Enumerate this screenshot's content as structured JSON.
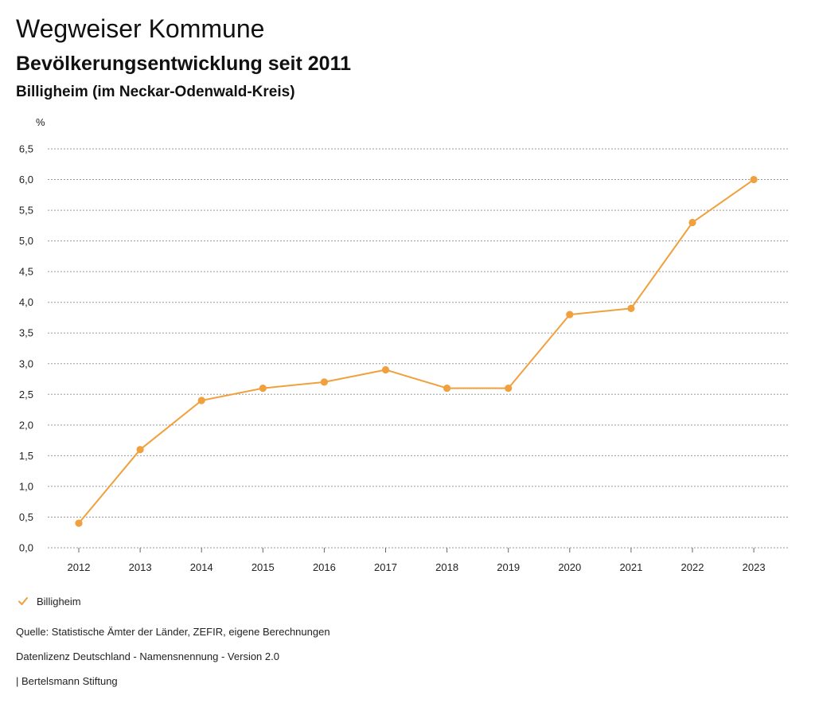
{
  "header": {
    "title": "Wegweiser Kommune",
    "subtitle": "Bevölkerungsentwicklung seit 2011",
    "region": "Billigheim (im Neckar-Odenwald-Kreis)"
  },
  "chart_data": {
    "type": "line",
    "title": "Bevölkerungsentwicklung seit 2011",
    "subtitle": "Billigheim (im Neckar-Odenwald-Kreis)",
    "xlabel": "",
    "ylabel": "%",
    "categories": [
      "2012",
      "2013",
      "2014",
      "2015",
      "2016",
      "2017",
      "2018",
      "2019",
      "2020",
      "2021",
      "2022",
      "2023"
    ],
    "series": [
      {
        "name": "Billigheim",
        "color": "#F0A03C",
        "values": [
          0.4,
          1.6,
          2.4,
          2.6,
          2.7,
          2.9,
          2.6,
          2.6,
          3.8,
          3.9,
          5.3,
          6.0
        ]
      }
    ],
    "ylim": [
      0,
      6.5
    ],
    "yticks": [
      0,
      0.5,
      1.0,
      1.5,
      2.0,
      2.5,
      3.0,
      3.5,
      4.0,
      4.5,
      5.0,
      5.5,
      6.0,
      6.5
    ],
    "ytick_labels": [
      "0,0",
      "0,5",
      "1,0",
      "1,5",
      "2,0",
      "2,5",
      "3,0",
      "3,5",
      "4,0",
      "4,5",
      "5,0",
      "5,5",
      "6,0",
      "6,5"
    ],
    "grid": true,
    "legend_position": "bottom-left"
  },
  "legend": {
    "items": [
      {
        "label": "Billigheim",
        "icon": "check-icon",
        "color": "#F0A03C"
      }
    ]
  },
  "footer": {
    "source": "Quelle: Statistische Ämter der Länder, ZEFIR, eigene Berechnungen",
    "license": "Datenlizenz Deutschland - Namensnennung - Version 2.0",
    "publisher": "| Bertelsmann Stiftung"
  }
}
